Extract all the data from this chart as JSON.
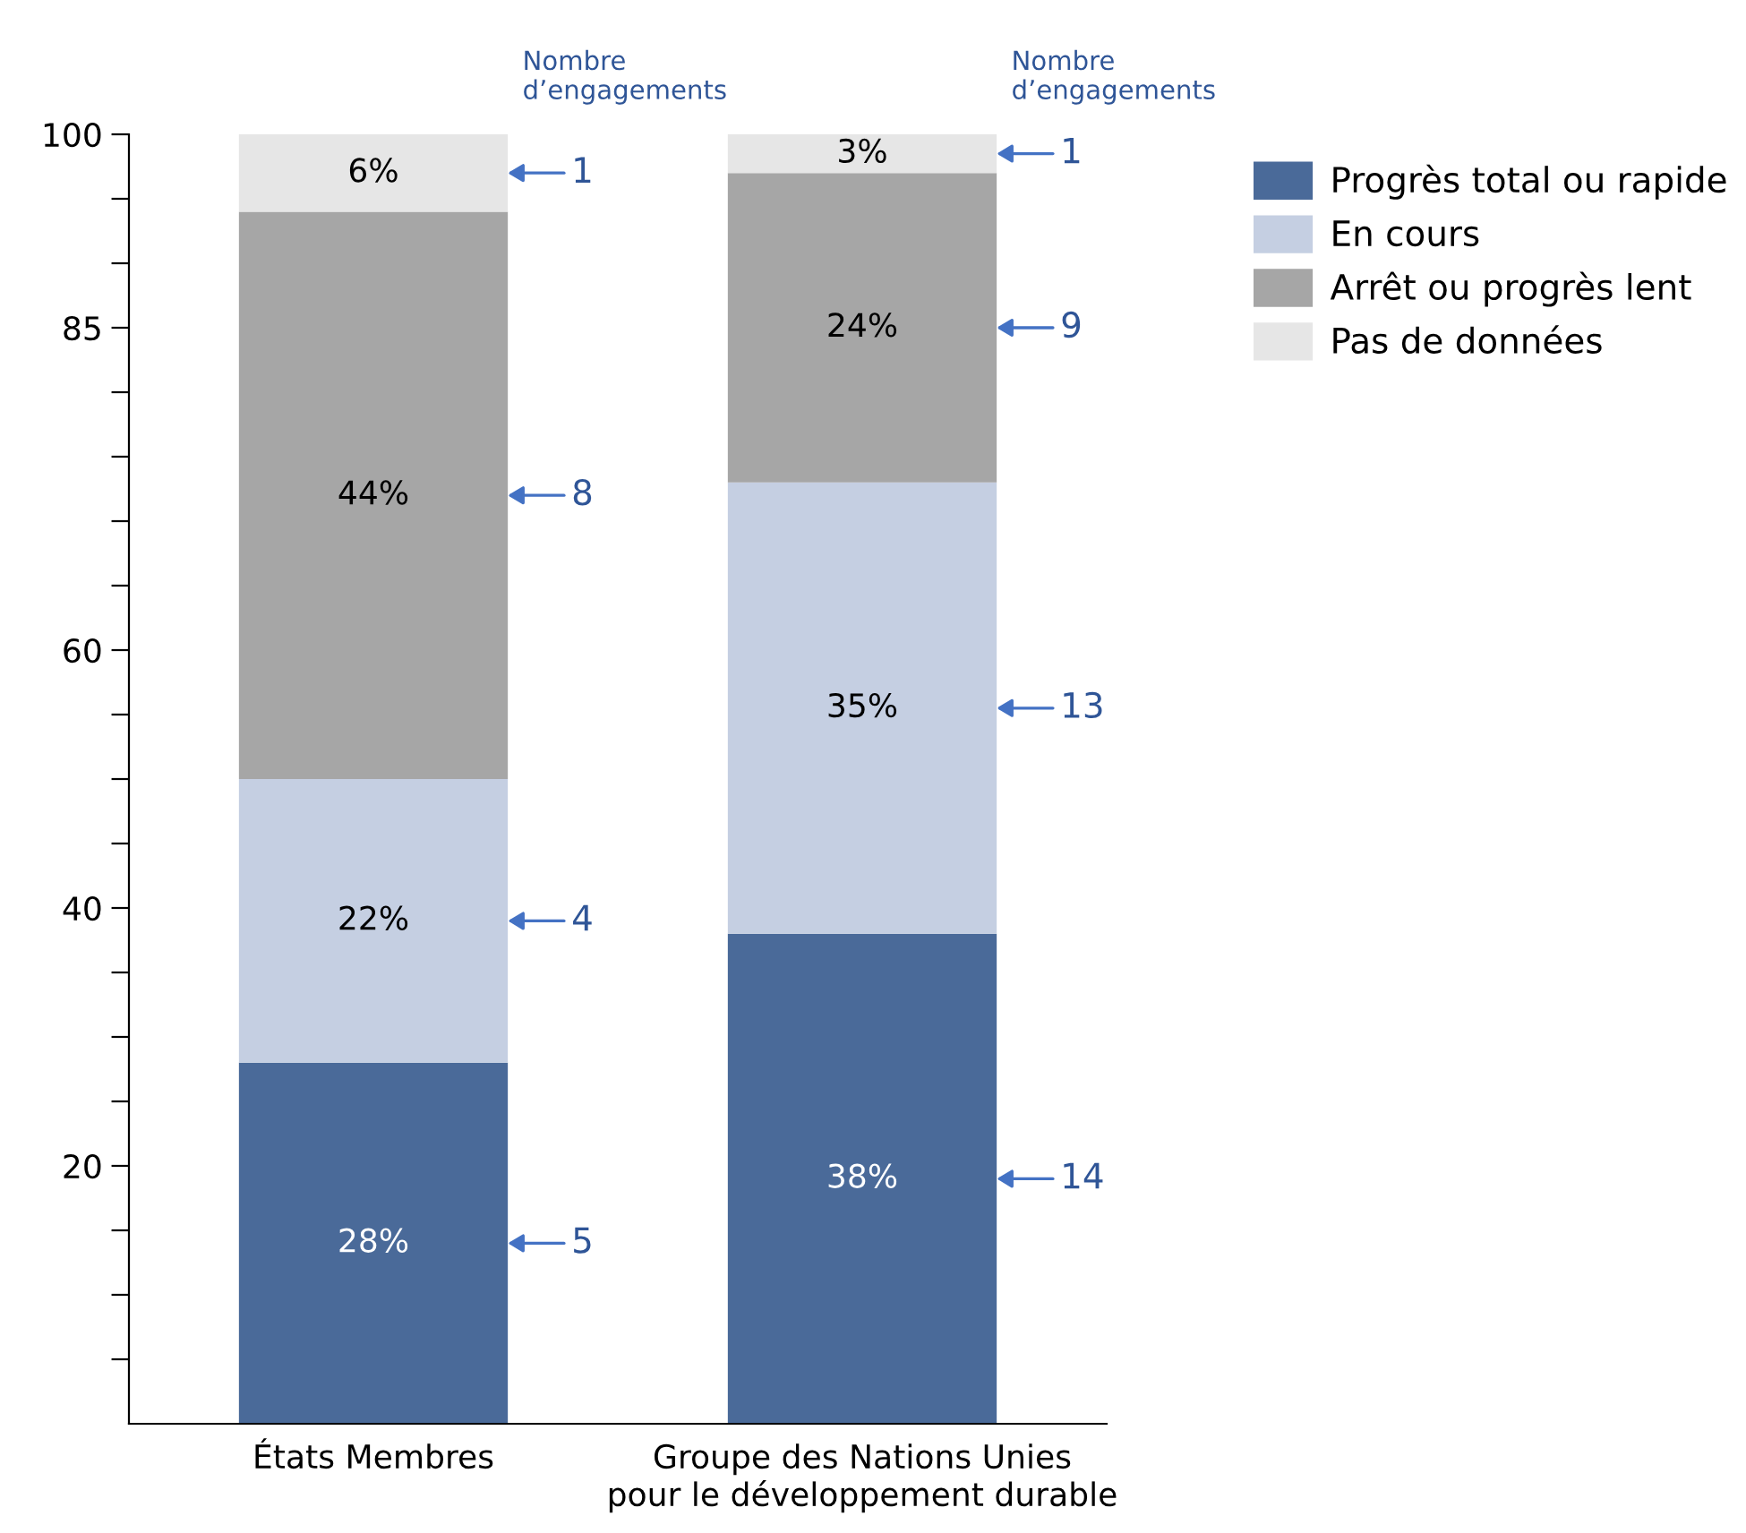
{
  "chart_data": {
    "type": "bar",
    "stacked": true,
    "categories": [
      "États Membres",
      "Groupe des Nations Unies\npour le développement durable"
    ],
    "series": [
      {
        "name": "Progrès total ou rapide",
        "color": "#4a6a99",
        "values": [
          28,
          38
        ],
        "value_labels": [
          "28%",
          "38%"
        ]
      },
      {
        "name": "En cours",
        "color": "#c5cfe2",
        "values": [
          22,
          35
        ],
        "value_labels": [
          "22%",
          "35%"
        ]
      },
      {
        "name": "Arrêt ou progrès lent",
        "color": "#a6a6a6",
        "values": [
          44,
          24
        ],
        "value_labels": [
          "44%",
          "24%"
        ]
      },
      {
        "name": "Pas de données",
        "color": "#e6e6e6",
        "values": [
          6,
          3
        ],
        "value_labels": [
          "6%",
          "3%"
        ]
      }
    ],
    "ylim": [
      0,
      100
    ],
    "yticks": [
      {
        "value": 5,
        "label": null
      },
      {
        "value": 10,
        "label": null
      },
      {
        "value": 15,
        "label": null
      },
      20,
      {
        "value": 25,
        "label": null
      },
      {
        "value": 30,
        "label": null
      },
      {
        "value": 35,
        "label": null
      },
      40,
      {
        "value": 45,
        "label": null
      },
      {
        "value": 50,
        "label": null
      },
      {
        "value": 55,
        "label": null
      },
      60,
      {
        "value": 65,
        "label": null
      },
      {
        "value": 70,
        "label": null
      },
      {
        "value": 75,
        "label": null
      },
      {
        "value": 80,
        "label": null
      },
      85,
      {
        "value": 90,
        "label": null
      },
      {
        "value": 95,
        "label": null
      },
      100
    ],
    "grid": false,
    "legend": "top right",
    "annotations": [
      "Nombre\nd’engagements",
      "Nombre\nd’engagements",
      "5",
      "4",
      "8",
      "1",
      "14",
      "13",
      "9",
      "1"
    ]
  }
}
